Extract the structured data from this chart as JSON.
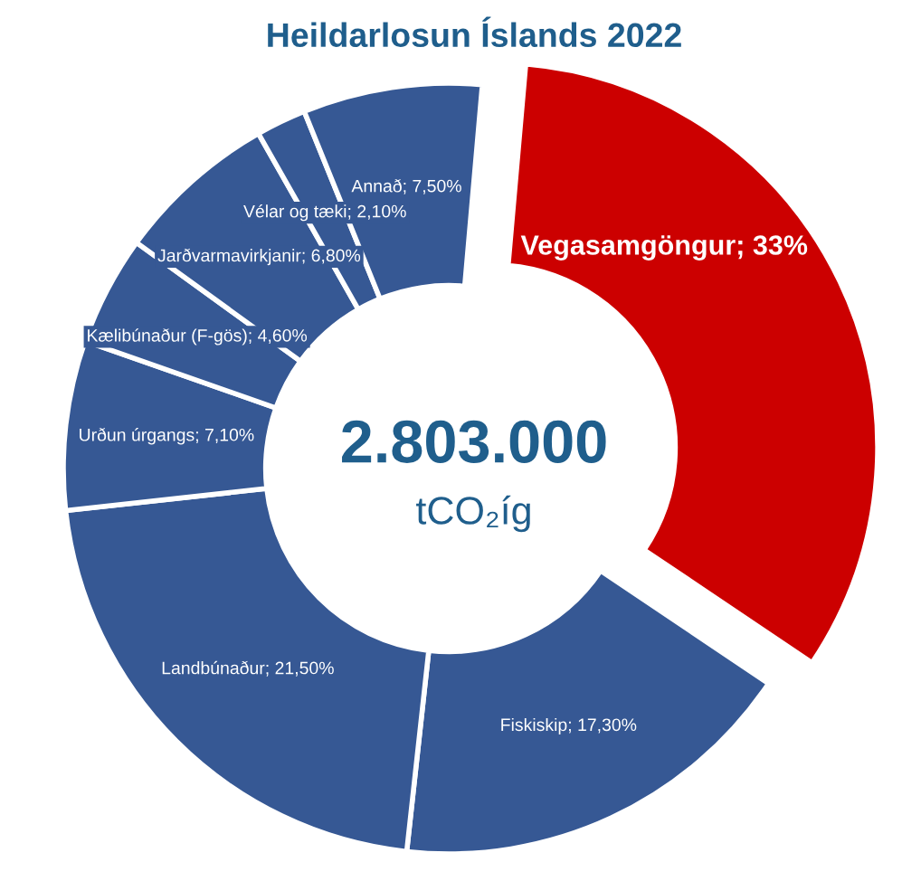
{
  "chart_data": {
    "type": "donut",
    "title": "Heildarlosun Íslands 2022",
    "categories": [
      "Vegasamgöngur",
      "Fiskiskip",
      "Landbúnaður",
      "Urðun úrgangs",
      "Kælibúnaður (F-gös)",
      "Jarðvarmavirkjanir",
      "Vélar og tæki",
      "Annað"
    ],
    "values": [
      33,
      17.3,
      21.5,
      7.1,
      4.6,
      6.8,
      2.1,
      7.5
    ],
    "value_labels": [
      "33%",
      "17,30%",
      "21,50%",
      "7,10%",
      "4,60%",
      "6,80%",
      "2,10%",
      "7,50%"
    ],
    "colors": [
      "#cc0000",
      "#365894",
      "#365894",
      "#365894",
      "#365894",
      "#365894",
      "#365894",
      "#365894"
    ],
    "annotations": [
      "2.803.000",
      "tCO₂íg"
    ]
  }
}
